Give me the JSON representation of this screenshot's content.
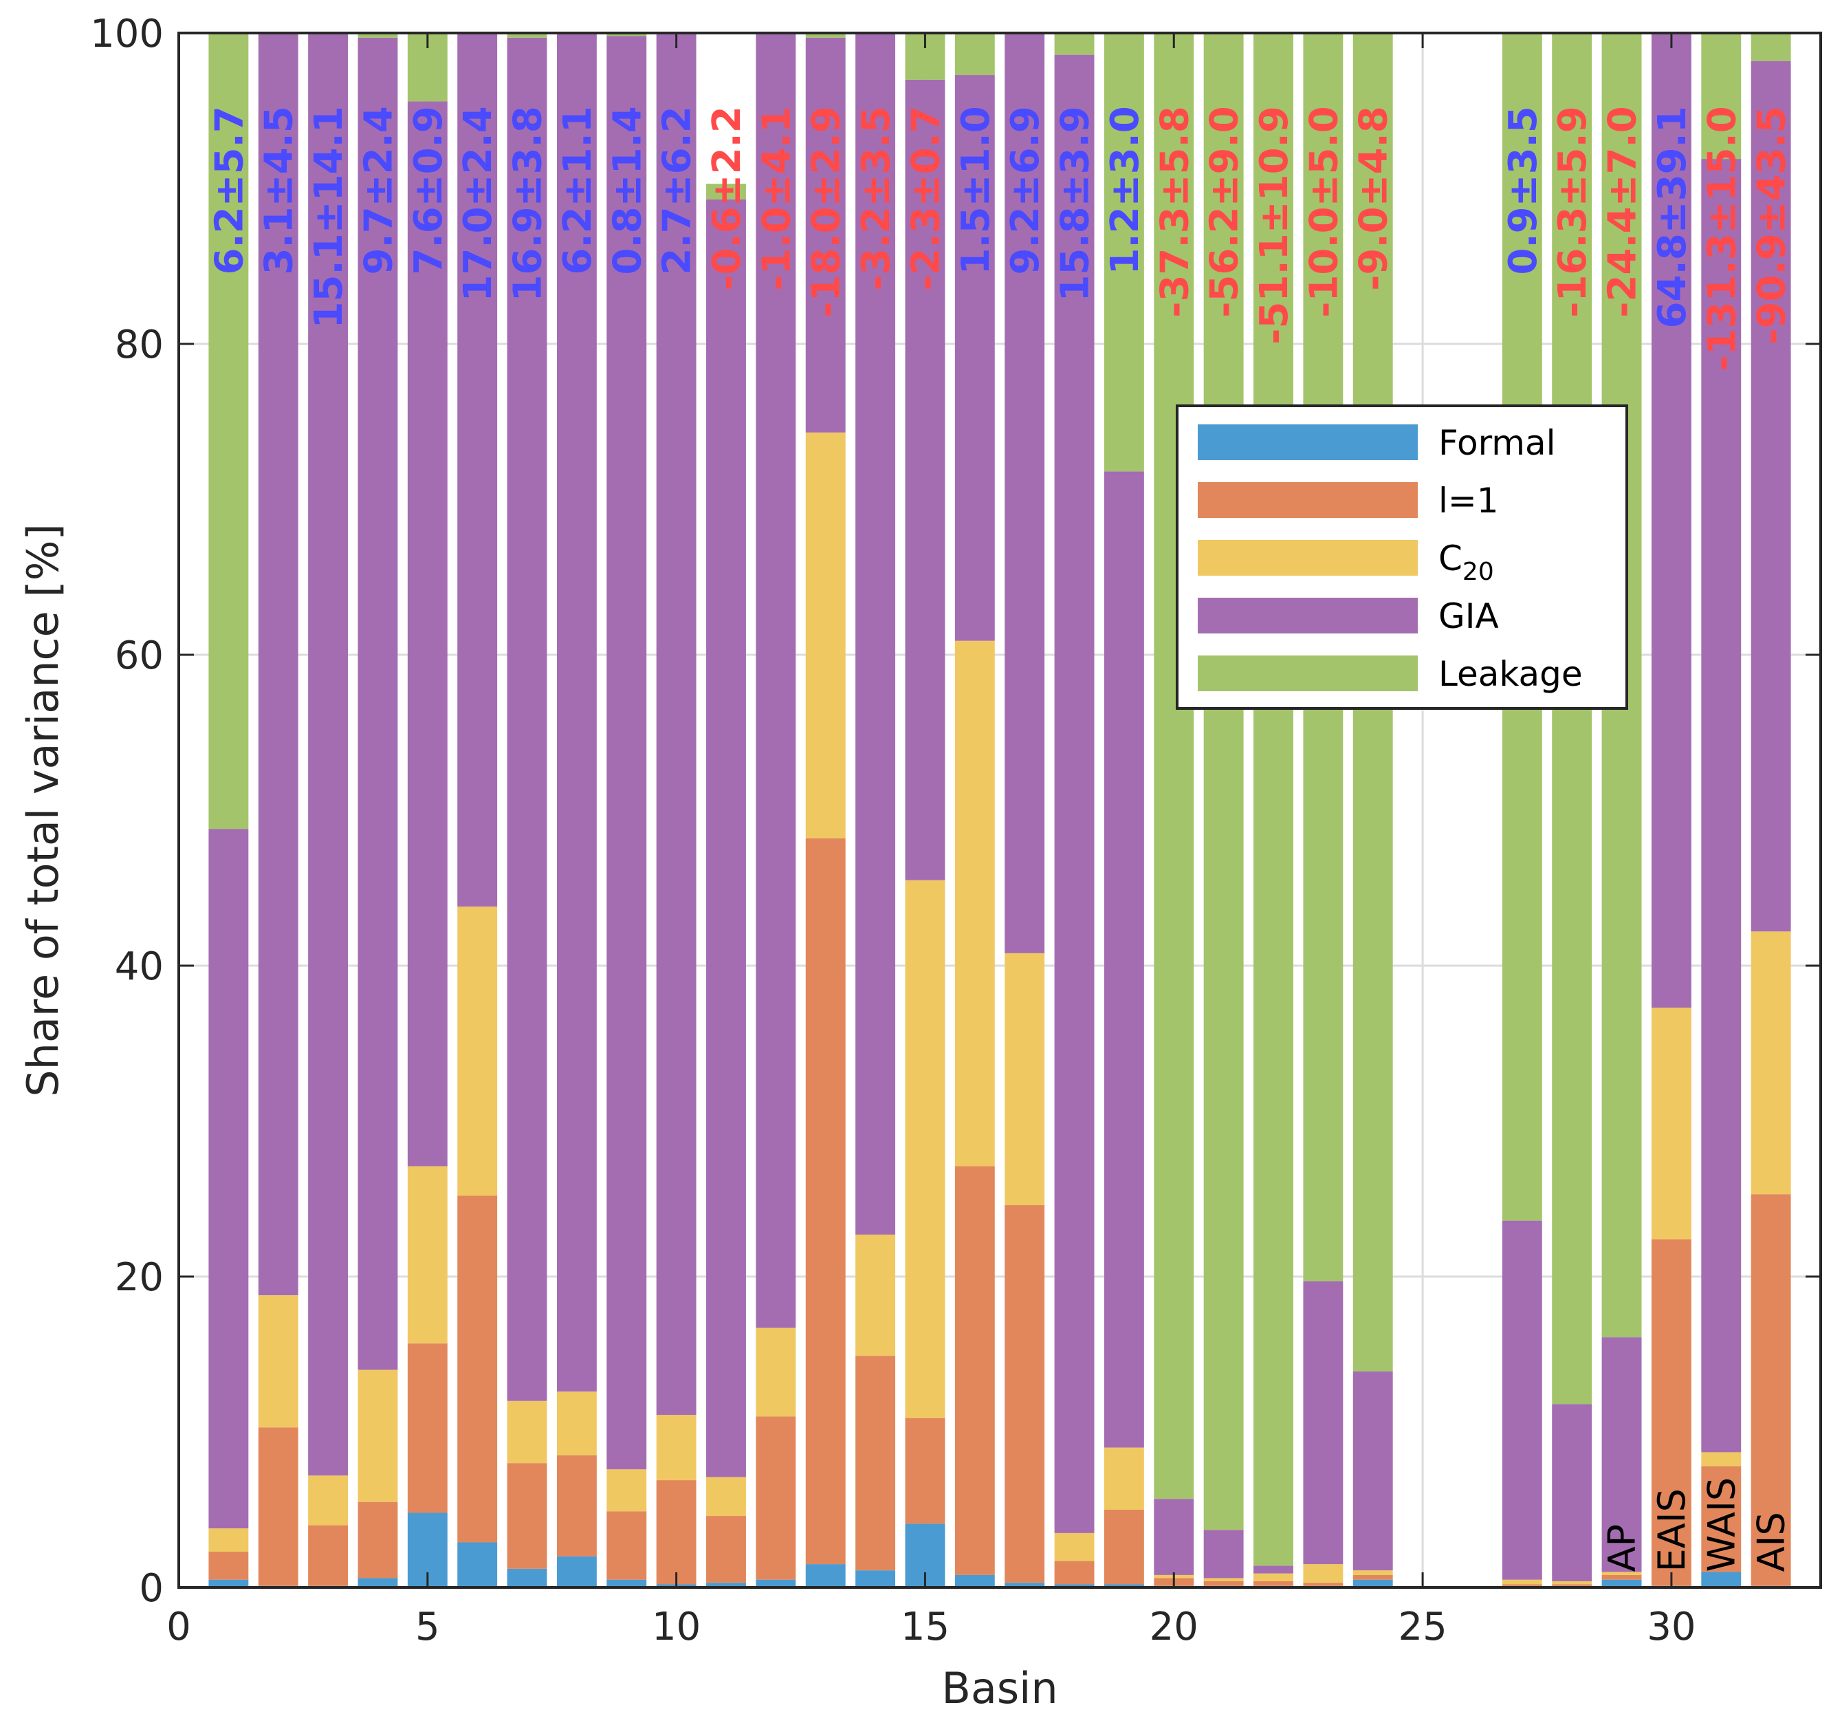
{
  "chart_data": {
    "type": "bar",
    "stacked": true,
    "xlabel": "Basin",
    "ylabel": "Share of total variance [%]",
    "xlim": [
      0,
      33
    ],
    "ylim": [
      0,
      100
    ],
    "xticks": [
      0,
      5,
      10,
      15,
      20,
      25,
      30
    ],
    "yticks": [
      0,
      20,
      40,
      60,
      80,
      100
    ],
    "grid": true,
    "legend_position": "upper-right",
    "x": [
      1,
      2,
      3,
      4,
      5,
      6,
      7,
      8,
      9,
      10,
      11,
      12,
      13,
      14,
      15,
      16,
      17,
      18,
      19,
      20,
      21,
      22,
      23,
      24,
      27,
      28,
      29,
      30,
      31,
      32
    ],
    "series": [
      {
        "name": "Formal",
        "color": "#4a9bd1",
        "values": [
          0.5,
          0.1,
          0.1,
          0.6,
          4.8,
          2.9,
          1.2,
          2.0,
          0.5,
          0.2,
          0.3,
          0.5,
          1.5,
          1.1,
          4.1,
          0.8,
          0.3,
          0.2,
          0.2,
          0.1,
          0.1,
          0.1,
          0.1,
          0.5,
          0.1,
          0.1,
          0.5,
          0.1,
          1.0,
          0.1
        ]
      },
      {
        "name": "l=1",
        "color": "#e2875b",
        "values": [
          1.8,
          10.2,
          3.9,
          4.9,
          10.9,
          22.3,
          6.8,
          6.5,
          4.4,
          6.7,
          4.3,
          10.5,
          46.7,
          13.8,
          6.8,
          26.3,
          24.3,
          1.5,
          4.8,
          0.5,
          0.3,
          0.3,
          0.2,
          0.3,
          0.1,
          0.1,
          0.3,
          22.3,
          6.8,
          25.2
        ]
      },
      {
        "name": "C_20",
        "color": "#f0c862",
        "values": [
          1.5,
          8.5,
          3.2,
          8.5,
          11.4,
          18.6,
          4.0,
          4.1,
          2.7,
          4.2,
          2.5,
          5.7,
          26.1,
          7.8,
          34.6,
          33.8,
          16.2,
          1.8,
          4.0,
          0.2,
          0.2,
          0.5,
          1.2,
          0.3,
          0.3,
          0.2,
          0.2,
          14.9,
          0.9,
          16.9
        ]
      },
      {
        "name": "GIA",
        "color": "#a46db2",
        "values": [
          45.0,
          81.2,
          92.8,
          85.7,
          68.5,
          56.2,
          87.7,
          87.4,
          92.2,
          88.9,
          82.2,
          83.3,
          25.4,
          77.3,
          51.5,
          36.4,
          59.2,
          95.1,
          62.8,
          4.9,
          3.1,
          0.5,
          18.2,
          12.8,
          23.1,
          11.4,
          15.1,
          62.7,
          83.2,
          56.0
        ]
      },
      {
        "name": "Leakage",
        "color": "#a3c46b",
        "values": [
          51.2,
          0.0,
          0.0,
          0.3,
          4.4,
          0.0,
          0.3,
          0.0,
          0.2,
          0.0,
          1.0,
          0.0,
          0.3,
          0.0,
          3.0,
          2.7,
          0.0,
          1.4,
          28.2,
          94.3,
          96.3,
          98.6,
          80.3,
          86.1,
          76.4,
          88.2,
          83.9,
          0.0,
          8.1,
          1.8
        ]
      }
    ],
    "bar_annotations": [
      {
        "x": 1,
        "text": "6.2±5.7",
        "color": "#4a4aff"
      },
      {
        "x": 2,
        "text": "3.1±4.5",
        "color": "#4a4aff"
      },
      {
        "x": 3,
        "text": "15.1±14.1",
        "color": "#4a4aff"
      },
      {
        "x": 4,
        "text": "9.7±2.4",
        "color": "#4a4aff"
      },
      {
        "x": 5,
        "text": "7.6±0.9",
        "color": "#4a4aff"
      },
      {
        "x": 6,
        "text": "17.0±2.4",
        "color": "#4a4aff"
      },
      {
        "x": 7,
        "text": "16.9±3.8",
        "color": "#4a4aff"
      },
      {
        "x": 8,
        "text": "6.2±1.1",
        "color": "#4a4aff"
      },
      {
        "x": 9,
        "text": "0.8±1.4",
        "color": "#4a4aff"
      },
      {
        "x": 10,
        "text": "2.7±6.2",
        "color": "#4a4aff"
      },
      {
        "x": 11,
        "text": "-0.6±2.2",
        "color": "#ff4a4a"
      },
      {
        "x": 12,
        "text": "-1.0±4.1",
        "color": "#ff4a4a"
      },
      {
        "x": 13,
        "text": "-18.0±2.9",
        "color": "#ff4a4a"
      },
      {
        "x": 14,
        "text": "-3.2±3.5",
        "color": "#ff4a4a"
      },
      {
        "x": 15,
        "text": "-2.3±0.7",
        "color": "#ff4a4a"
      },
      {
        "x": 16,
        "text": "1.5±1.0",
        "color": "#4a4aff"
      },
      {
        "x": 17,
        "text": "9.2±6.9",
        "color": "#4a4aff"
      },
      {
        "x": 18,
        "text": "15.8±3.9",
        "color": "#4a4aff"
      },
      {
        "x": 19,
        "text": "1.2±3.0",
        "color": "#4a4aff"
      },
      {
        "x": 20,
        "text": "-37.3±5.8",
        "color": "#ff4a4a"
      },
      {
        "x": 21,
        "text": "-56.2±9.0",
        "color": "#ff4a4a"
      },
      {
        "x": 22,
        "text": "-51.1±10.9",
        "color": "#ff4a4a"
      },
      {
        "x": 23,
        "text": "-10.0±5.0",
        "color": "#ff4a4a"
      },
      {
        "x": 24,
        "text": "-9.0±4.8",
        "color": "#ff4a4a"
      },
      {
        "x": 27,
        "text": "0.9±3.5",
        "color": "#4a4aff"
      },
      {
        "x": 28,
        "text": "-16.3±5.9",
        "color": "#ff4a4a"
      },
      {
        "x": 29,
        "text": "-24.4±7.0",
        "color": "#ff4a4a"
      },
      {
        "x": 30,
        "text": "64.8±39.1",
        "color": "#4a4aff"
      },
      {
        "x": 31,
        "text": "-131.3±15.0",
        "color": "#ff4a4a"
      },
      {
        "x": 32,
        "text": "-90.9±43.5",
        "color": "#ff4a4a"
      }
    ],
    "region_labels": [
      {
        "x": 29,
        "text": "AP"
      },
      {
        "x": 30,
        "text": "EAIS"
      },
      {
        "x": 31,
        "text": "WAIS"
      },
      {
        "x": 32,
        "text": "AIS"
      }
    ],
    "legend": {
      "entries": [
        {
          "series": 0,
          "label": "Formal"
        },
        {
          "series": 1,
          "label": "l=1"
        },
        {
          "series": 2,
          "label": "C",
          "subscript": "20"
        },
        {
          "series": 3,
          "label": "GIA"
        },
        {
          "series": 4,
          "label": "Leakage"
        }
      ]
    }
  }
}
